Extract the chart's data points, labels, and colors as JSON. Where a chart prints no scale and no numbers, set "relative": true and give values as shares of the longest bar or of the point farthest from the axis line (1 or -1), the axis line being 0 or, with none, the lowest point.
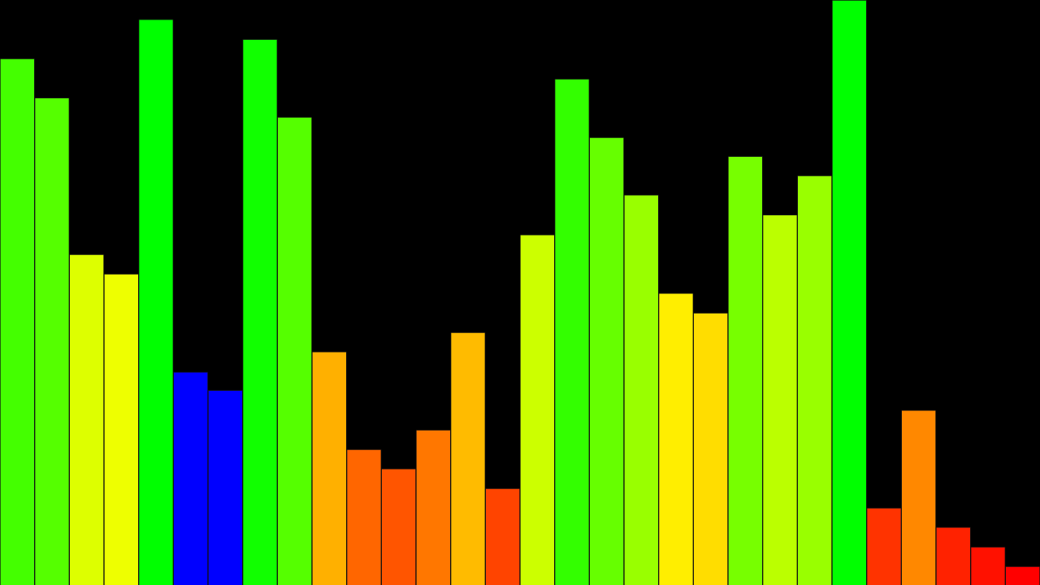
{
  "chart_data": {
    "type": "bar",
    "relative": true,
    "categories": [
      null,
      null,
      null,
      null,
      null,
      null,
      null,
      null,
      null,
      null,
      null,
      null,
      null,
      null,
      null,
      null,
      null,
      null,
      null,
      null,
      null,
      null,
      null,
      null,
      null,
      null,
      null,
      null,
      null,
      null
    ],
    "values": [
      0.9,
      0.833,
      0.565,
      0.532,
      0.967,
      0.364,
      0.333,
      0.933,
      0.8,
      0.399,
      0.232,
      0.199,
      0.265,
      0.432,
      0.165,
      0.599,
      0.865,
      0.765,
      0.667,
      0.499,
      0.465,
      0.733,
      0.633,
      0.7,
      1,
      0.132,
      0.299,
      0.099,
      0.065,
      0.032
    ],
    "colors": [
      "#44ff00",
      "#55ff00",
      "#ddff00",
      "#eeff00",
      "#00ff00",
      "#0000ff",
      "#0000ff",
      "#11ff00",
      "#55ff00",
      "#ffb000",
      "#ff6600",
      "#ff5500",
      "#ff7700",
      "#ffbb00",
      "#ff4400",
      "#ccff00",
      "#33ff00",
      "#66ff00",
      "#99ff00",
      "#ffee00",
      "#ffdd00",
      "#77ff00",
      "#bbff00",
      "#99ff00",
      "#00ff00",
      "#ff3300",
      "#ff8800",
      "#ff2200",
      "#ff1100",
      "#ff0000"
    ]
  }
}
